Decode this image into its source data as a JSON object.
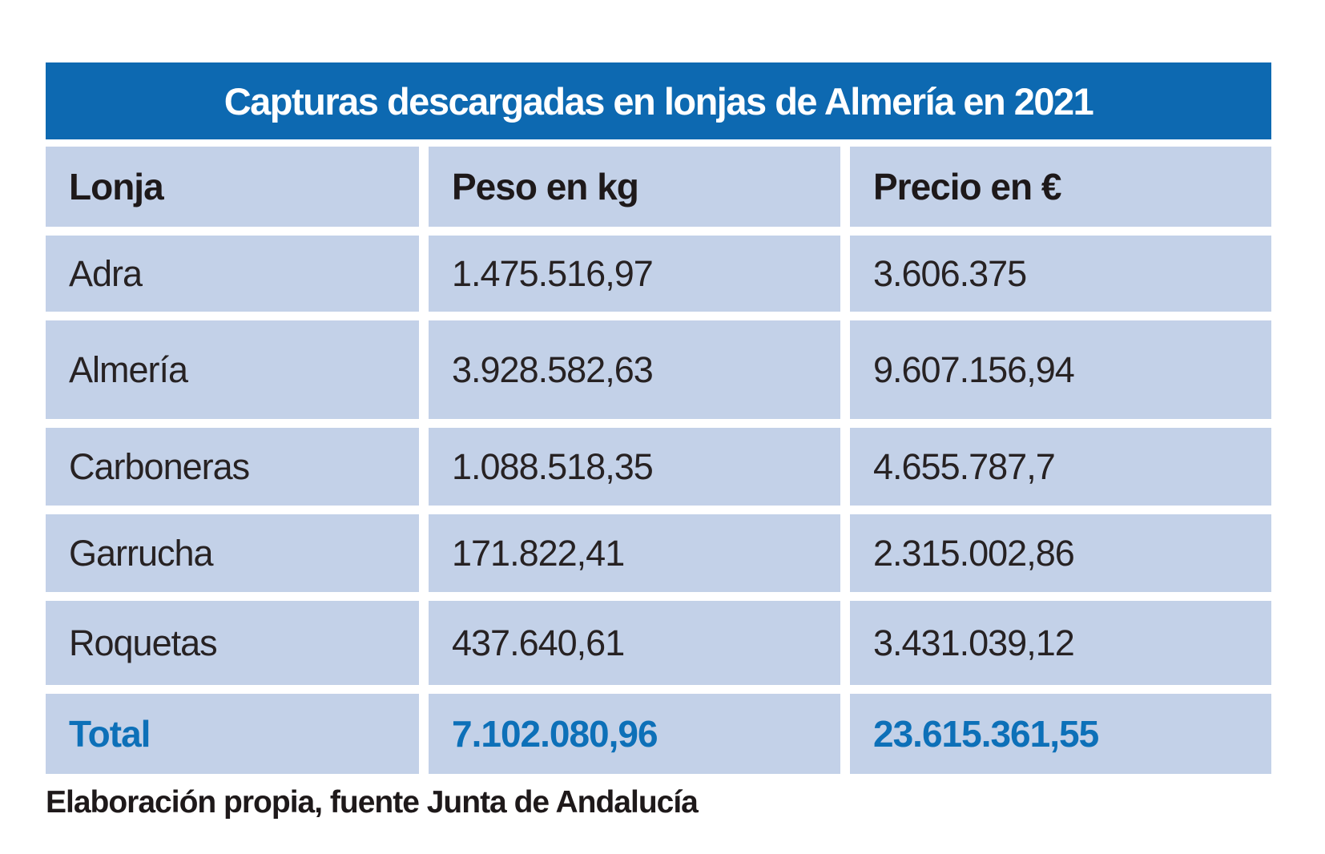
{
  "title": "Capturas descargadas en lonjas de Almería en 2021",
  "table": {
    "columns": [
      "Lonja",
      "Peso en kg",
      "Precio en €"
    ],
    "rows": [
      {
        "lonja": "Adra",
        "peso": "1.475.516,97",
        "precio": "3.606.375"
      },
      {
        "lonja": "Almería",
        "peso": "3.928.582,63",
        "precio": "9.607.156,94"
      },
      {
        "lonja": "Carboneras",
        "peso": "1.088.518,35",
        "precio": "4.655.787,7"
      },
      {
        "lonja": "Garrucha",
        "peso": "171.822,41",
        "precio": "2.315.002,86"
      },
      {
        "lonja": "Roquetas",
        "peso": "437.640,61",
        "precio": "3.431.039,12"
      }
    ],
    "total": {
      "label": "Total",
      "peso": "7.102.080,96",
      "precio": "23.615.361,55"
    }
  },
  "footer": {
    "text": "Elaboración propia, fuente Junta de Andalucía"
  },
  "colors": {
    "title_bar": "#0d69b1",
    "title_text": "#ffffff",
    "cell_background": "#c3d1e8",
    "total_accent": "#0d70b8",
    "body_text": "#272223",
    "heading_text": "#1e191a"
  },
  "chart_data": {
    "type": "table",
    "title": "Capturas descargadas en lonjas de Almería en 2021",
    "columns": [
      "Lonja",
      "Peso en kg",
      "Precio en €"
    ],
    "rows": [
      [
        "Adra",
        "1.475.516,97",
        "3.606.375"
      ],
      [
        "Almería",
        "3.928.582,63",
        "9.607.156,94"
      ],
      [
        "Carboneras",
        "1.088.518,35",
        "4.655.787,7"
      ],
      [
        "Garrucha",
        "171.822,41",
        "2.315.002,86"
      ],
      [
        "Roquetas",
        "437.640,61",
        "3.431.039,12"
      ],
      [
        "Total",
        "7.102.080,96",
        "23.615.361,55"
      ]
    ],
    "numeric": {
      "peso_kg": {
        "Adra": 1475516.97,
        "Almería": 3928582.63,
        "Carboneras": 1088518.35,
        "Garrucha": 171822.41,
        "Roquetas": 437640.61,
        "Total": 7102080.96
      },
      "precio_eur": {
        "Adra": 3606375,
        "Almería": 9607156.94,
        "Carboneras": 4655787.7,
        "Garrucha": 2315002.86,
        "Roquetas": 3431039.12,
        "Total": 23615361.55
      }
    },
    "source": "Elaboración propia, fuente Junta de Andalucía"
  }
}
